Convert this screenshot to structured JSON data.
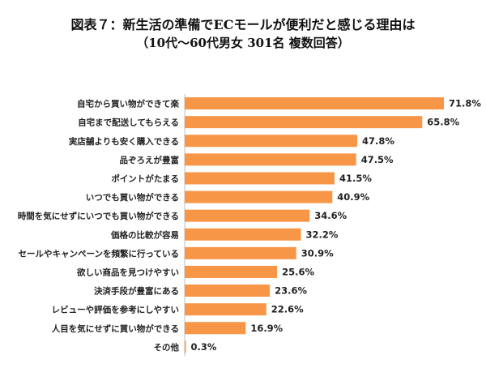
{
  "title": {
    "line1": "図表７：新生活の準備でECモールが便利だと感じる理由は",
    "line2": "（10代〜60代男女 301名 複数回答）"
  },
  "colors": {
    "bar": "#f79646",
    "axis": "#bfbfbf"
  },
  "chart_data": {
    "type": "bar",
    "orientation": "horizontal",
    "unit": "%",
    "xlim": [
      0,
      80
    ],
    "grid": false,
    "categories": [
      "自宅から買い物ができて楽",
      "自宅まで配送してもらえる",
      "実店舗よりも安く購入できる",
      "品ぞろえが豊富",
      "ポイントがたまる",
      "いつでも買い物ができる",
      "時間を気にせずにいつでも買い物ができる",
      "価格の比較が容易",
      "セールやキャンペーンを頻繁に行っている",
      "欲しい商品を見つけやすい",
      "決済手段が豊富にある",
      "レビューや評価を参考にしやすい",
      "人目を気にせずに買い物ができる",
      "その他"
    ],
    "values": [
      71.8,
      65.8,
      47.8,
      47.5,
      41.5,
      40.9,
      34.6,
      32.2,
      30.9,
      25.6,
      23.6,
      22.6,
      16.9,
      0.3
    ],
    "value_labels": [
      "71.8%",
      "65.8%",
      "47.8%",
      "47.5%",
      "41.5%",
      "40.9%",
      "34.6%",
      "32.2%",
      "30.9%",
      "25.6%",
      "23.6%",
      "22.6%",
      "16.9%",
      "0.3%"
    ]
  }
}
